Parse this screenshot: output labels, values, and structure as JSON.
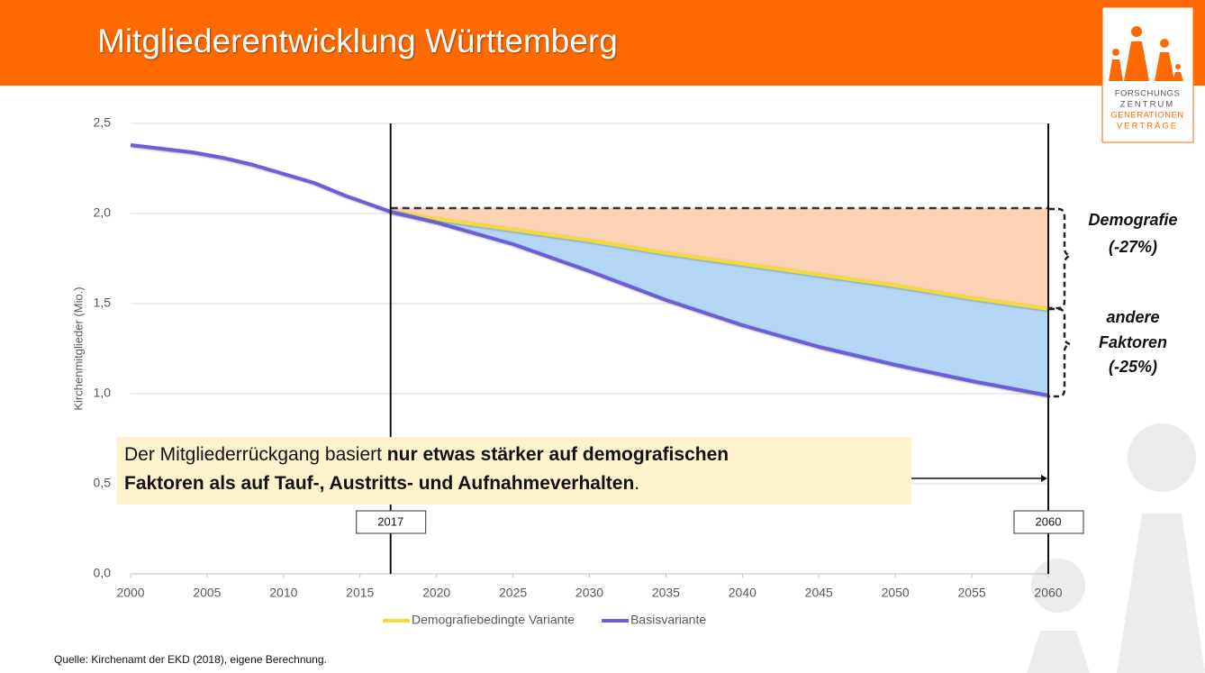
{
  "header": {
    "title": "Mitgliederentwicklung Württemberg"
  },
  "logo": {
    "lines": [
      "FORSCHUNGS",
      "ZENTRUM",
      "GENERATIONEN",
      "VERTRÄGE"
    ]
  },
  "chart_data": {
    "type": "line",
    "y_axis_label": "Kirchenmitglieder (Mio.)",
    "x": [
      2000,
      2002,
      2004,
      2006,
      2008,
      2010,
      2012,
      2014,
      2016,
      2017,
      2020,
      2025,
      2030,
      2035,
      2040,
      2045,
      2050,
      2055,
      2060
    ],
    "series": [
      {
        "name": "Demografiebedingte Variante",
        "color": "#f0dc3c",
        "values": [
          null,
          null,
          null,
          null,
          null,
          null,
          null,
          null,
          null,
          2.01,
          1.97,
          1.91,
          1.85,
          1.78,
          1.72,
          1.66,
          1.6,
          1.53,
          1.47
        ]
      },
      {
        "name": "Basisvariante",
        "color": "#6a5fd8",
        "values": [
          2.38,
          2.36,
          2.34,
          2.31,
          2.27,
          2.22,
          2.17,
          2.1,
          2.04,
          2.01,
          1.95,
          1.83,
          1.68,
          1.52,
          1.38,
          1.26,
          1.16,
          1.07,
          0.99
        ]
      }
    ],
    "reference_line": 2.03,
    "markers": [
      2017,
      2060
    ],
    "xlim": [
      2000,
      2060
    ],
    "xticks": [
      2000,
      2005,
      2010,
      2015,
      2020,
      2025,
      2030,
      2035,
      2040,
      2045,
      2050,
      2055,
      2060
    ],
    "ylim": [
      0,
      2.5
    ],
    "yticks": [
      {
        "value": 0,
        "label": "0,0"
      },
      {
        "value": 0.5,
        "label": "0,5"
      },
      {
        "value": 1,
        "label": "1,0"
      },
      {
        "value": 1.5,
        "label": "1,5"
      },
      {
        "value": 2,
        "label": "2,0"
      },
      {
        "value": 2.5,
        "label": "2,5"
      }
    ],
    "grid": true,
    "annotations": [
      {
        "lines": [
          "Demografie",
          "(-27%)"
        ]
      },
      {
        "lines": [
          "andere",
          "Faktoren",
          "(-25%)"
        ]
      }
    ],
    "callout": [
      [
        {
          "text": "Der Mitgliederrückgang basiert ",
          "bold": false
        },
        {
          "text": "nur etwas stärker auf demografischen",
          "bold": true
        }
      ],
      [
        {
          "text": "Faktoren als auf Tauf-, Austritts- und Aufnahmeverhalten",
          "bold": true
        },
        {
          "text": ".",
          "bold": false
        }
      ]
    ],
    "source": "Quelle: Kirchenamt der EKD (2018), eigene Berechnung."
  }
}
